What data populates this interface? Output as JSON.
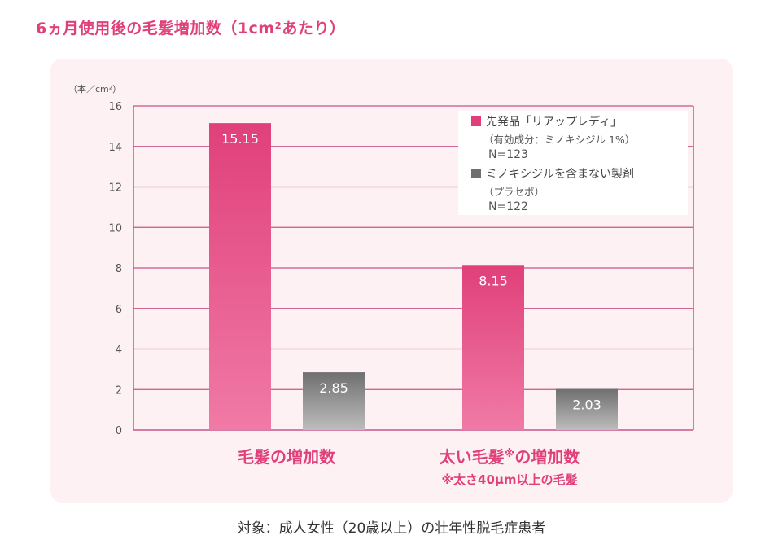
{
  "page": {
    "title": "6ヵ月使用後の毛髪増加数（1cm²あたり）",
    "caption": "対象：成人女性（20歳以上）の壮年性脱毛症患者"
  },
  "colors": {
    "accent": "#e0407a",
    "bar_primary_top": "#e0407a",
    "bar_primary_bottom": "#f07aa6",
    "bar_placebo_top": "#6f6f6f",
    "bar_placebo_bottom": "#bdbdbd",
    "grid": "#c8548a",
    "category_text": "#e0407a",
    "panel_bg": "#fdf1f3"
  },
  "chart_data": {
    "type": "bar",
    "title": "6ヵ月使用後の毛髪増加数（1cm²あたり）",
    "ylabel": "（本／cm²）",
    "ylim": [
      0,
      16
    ],
    "yticks": [
      0,
      2,
      4,
      6,
      8,
      10,
      12,
      14,
      16
    ],
    "grid": true,
    "legend_position": "top-right",
    "categories": [
      {
        "label": "毛髪の増加数",
        "note": ""
      },
      {
        "label": "太い毛髪",
        "mark": "※",
        "label_suffix": "の増加数",
        "note": "※太さ40μm以上の毛髪"
      }
    ],
    "series": [
      {
        "name": "先発品「リアップレディ」",
        "detail": "（有効成分：ミノキシジル 1%）",
        "n": "N=123",
        "values": [
          15.15,
          8.15
        ],
        "value_labels": [
          "15.15",
          "8.15"
        ]
      },
      {
        "name": "ミノキシジルを含まない製剤",
        "detail": "（プラセボ）",
        "n": "N=122",
        "values": [
          2.85,
          2.03
        ],
        "value_labels": [
          "2.85",
          "2.03"
        ]
      }
    ]
  }
}
